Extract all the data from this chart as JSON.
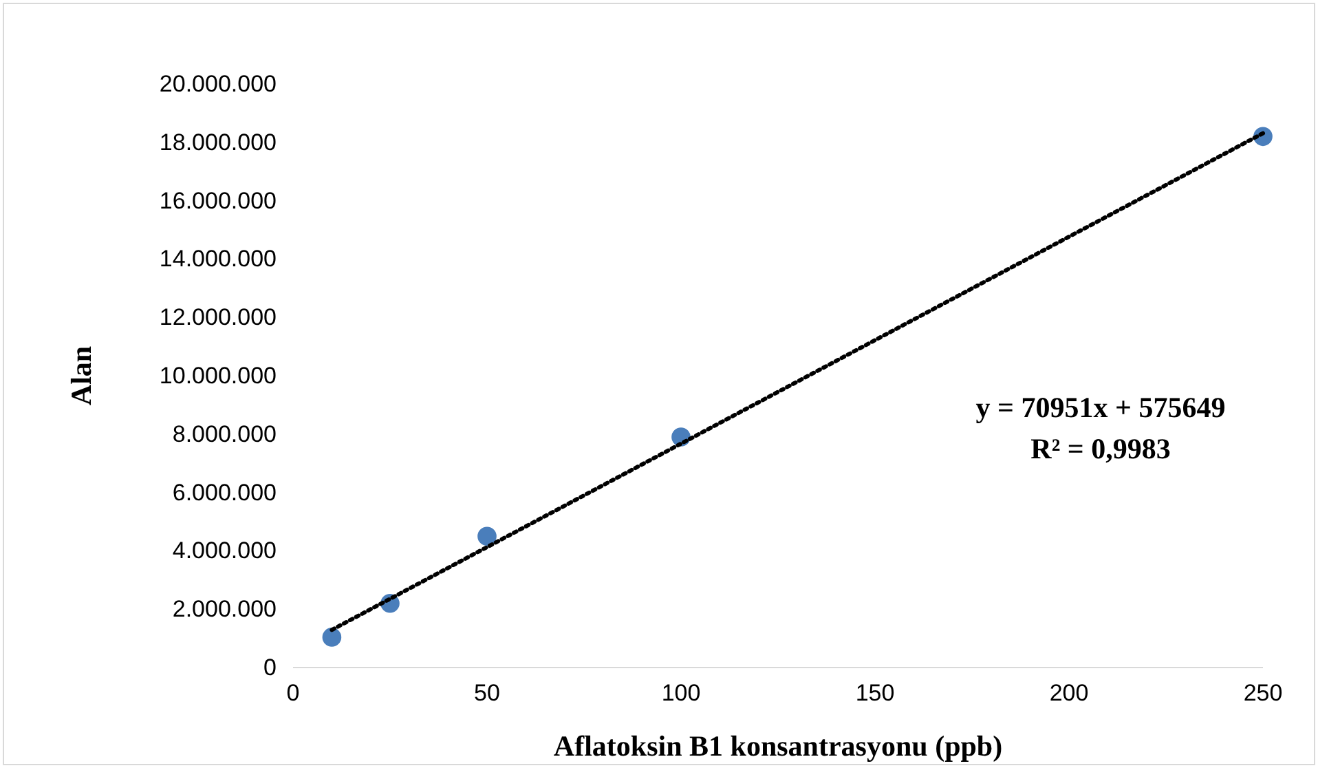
{
  "chart_data": {
    "type": "scatter",
    "xlabel": "Aflatoksin B1 konsantrasyonu (ppb)",
    "ylabel": "Alan",
    "xlim": [
      0,
      250
    ],
    "xticks": [
      0,
      50,
      100,
      150,
      200,
      250
    ],
    "ylim": [
      0,
      20000000
    ],
    "yticks": [
      0,
      {
        "value": 2000000,
        "label": "2.000.000"
      },
      {
        "value": 4000000,
        "label": "4.000.000"
      },
      {
        "value": 6000000,
        "label": "6.000.000"
      },
      {
        "value": 8000000,
        "label": "8.000.000"
      },
      {
        "value": 10000000,
        "label": "10.000.000"
      },
      {
        "value": 12000000,
        "label": "12.000.000"
      },
      {
        "value": 14000000,
        "label": "14.000.000"
      },
      {
        "value": 16000000,
        "label": "16.000.000"
      },
      {
        "value": 18000000,
        "label": "18.000.000"
      },
      {
        "value": 20000000,
        "label": "20.000.000"
      }
    ],
    "grid": false,
    "series": [
      {
        "color": "#4a7ebb",
        "marker": "circle",
        "x": [
          10,
          25,
          50,
          100,
          250
        ],
        "values": [
          1040000,
          2200000,
          4500000,
          7900000,
          18200000
        ]
      },
      {
        "type": "line",
        "color": "#000000",
        "line_style": "dotted",
        "x": [
          10,
          250
        ],
        "values": [
          1290000,
          18310000
        ]
      }
    ],
    "annotations": [
      "y = 70951x + 575649",
      "R² = 0,9983"
    ]
  }
}
